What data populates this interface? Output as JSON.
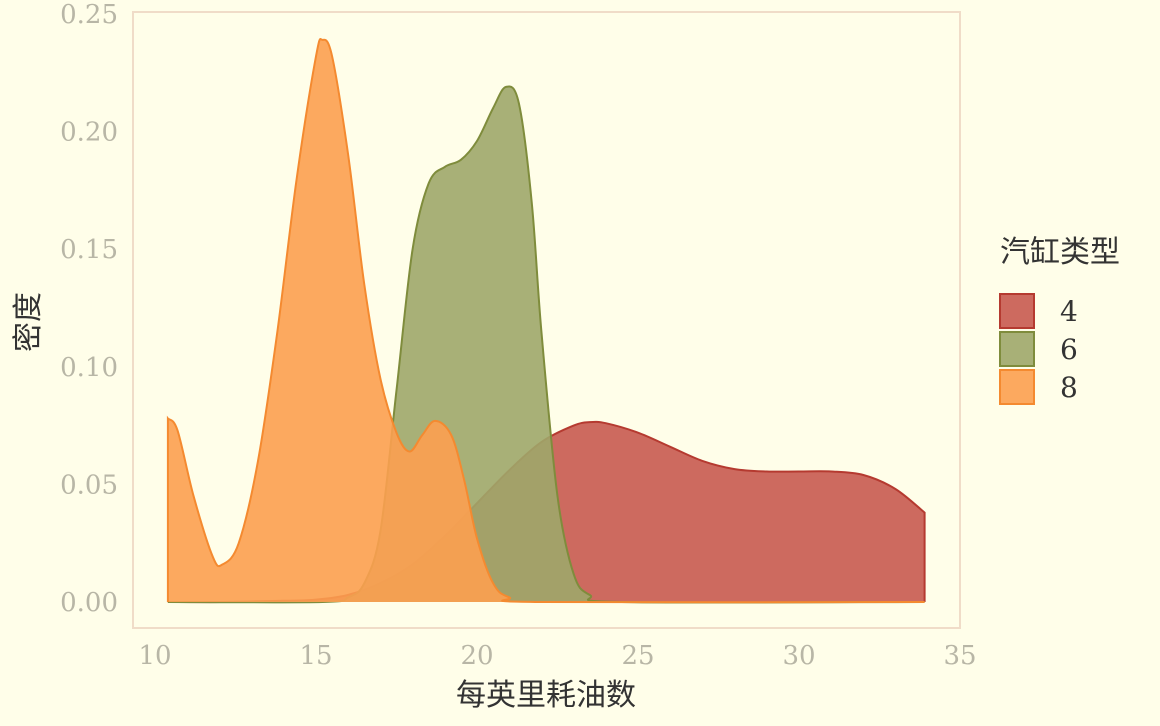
{
  "chart_data": {
    "type": "area",
    "title": "",
    "xlabel": "每英里耗油数",
    "ylabel": "密度",
    "xlim": [
      10,
      35
    ],
    "ylim": [
      0,
      0.25
    ],
    "x_ticks": [
      10,
      15,
      20,
      25,
      30,
      35
    ],
    "y_ticks": [
      0.0,
      0.05,
      0.1,
      0.15,
      0.2,
      0.25
    ],
    "y_tick_labels": [
      "0.00",
      "0.05",
      "0.10",
      "0.15",
      "0.20",
      "0.25"
    ],
    "grid": false,
    "legend": {
      "title": "汽缸类型",
      "position": "right"
    },
    "series": [
      {
        "name": "4",
        "fill": "#c85a50",
        "stroke": "#b53a30",
        "points": [
          [
            10.4,
            0.0
          ],
          [
            12,
            0.0
          ],
          [
            14,
            0.0005
          ],
          [
            15,
            0.001
          ],
          [
            16,
            0.003
          ],
          [
            17,
            0.008
          ],
          [
            18,
            0.016
          ],
          [
            19,
            0.028
          ],
          [
            20,
            0.042
          ],
          [
            21,
            0.056
          ],
          [
            22,
            0.068
          ],
          [
            23,
            0.075
          ],
          [
            23.5,
            0.0765
          ],
          [
            24,
            0.076
          ],
          [
            25,
            0.072
          ],
          [
            26,
            0.066
          ],
          [
            27,
            0.06
          ],
          [
            28,
            0.0565
          ],
          [
            29,
            0.0555
          ],
          [
            30,
            0.0555
          ],
          [
            31,
            0.0555
          ],
          [
            32,
            0.054
          ],
          [
            33,
            0.048
          ],
          [
            33.9,
            0.038
          ]
        ]
      },
      {
        "name": "6",
        "fill": "#9ea76a",
        "stroke": "#7f8c3c",
        "points": [
          [
            10.4,
            0.0
          ],
          [
            15.2,
            0.0
          ],
          [
            16,
            0.002
          ],
          [
            16.5,
            0.008
          ],
          [
            17,
            0.03
          ],
          [
            17.5,
            0.09
          ],
          [
            18,
            0.15
          ],
          [
            18.5,
            0.178
          ],
          [
            19,
            0.185
          ],
          [
            19.5,
            0.188
          ],
          [
            20,
            0.196
          ],
          [
            20.5,
            0.21
          ],
          [
            20.9,
            0.219
          ],
          [
            21.3,
            0.212
          ],
          [
            21.7,
            0.17
          ],
          [
            22,
            0.115
          ],
          [
            22.5,
            0.045
          ],
          [
            23,
            0.012
          ],
          [
            23.5,
            0.003
          ],
          [
            24.5,
            0.0
          ],
          [
            33.9,
            0.0
          ]
        ]
      },
      {
        "name": "8",
        "fill": "#fca050",
        "stroke": "#f48a30",
        "points": [
          [
            10.4,
            0.078
          ],
          [
            10.7,
            0.073
          ],
          [
            11.2,
            0.045
          ],
          [
            11.8,
            0.019
          ],
          [
            12.1,
            0.016
          ],
          [
            12.6,
            0.025
          ],
          [
            13.2,
            0.06
          ],
          [
            13.8,
            0.115
          ],
          [
            14.4,
            0.18
          ],
          [
            15,
            0.232
          ],
          [
            15.2,
            0.239
          ],
          [
            15.5,
            0.232
          ],
          [
            16,
            0.19
          ],
          [
            16.5,
            0.135
          ],
          [
            17,
            0.095
          ],
          [
            17.5,
            0.072
          ],
          [
            17.9,
            0.064
          ],
          [
            18.3,
            0.071
          ],
          [
            18.7,
            0.077
          ],
          [
            19.2,
            0.071
          ],
          [
            19.6,
            0.052
          ],
          [
            20,
            0.027
          ],
          [
            20.5,
            0.008
          ],
          [
            21,
            0.002
          ],
          [
            22,
            0.0
          ],
          [
            33.9,
            0.0
          ]
        ]
      }
    ]
  }
}
